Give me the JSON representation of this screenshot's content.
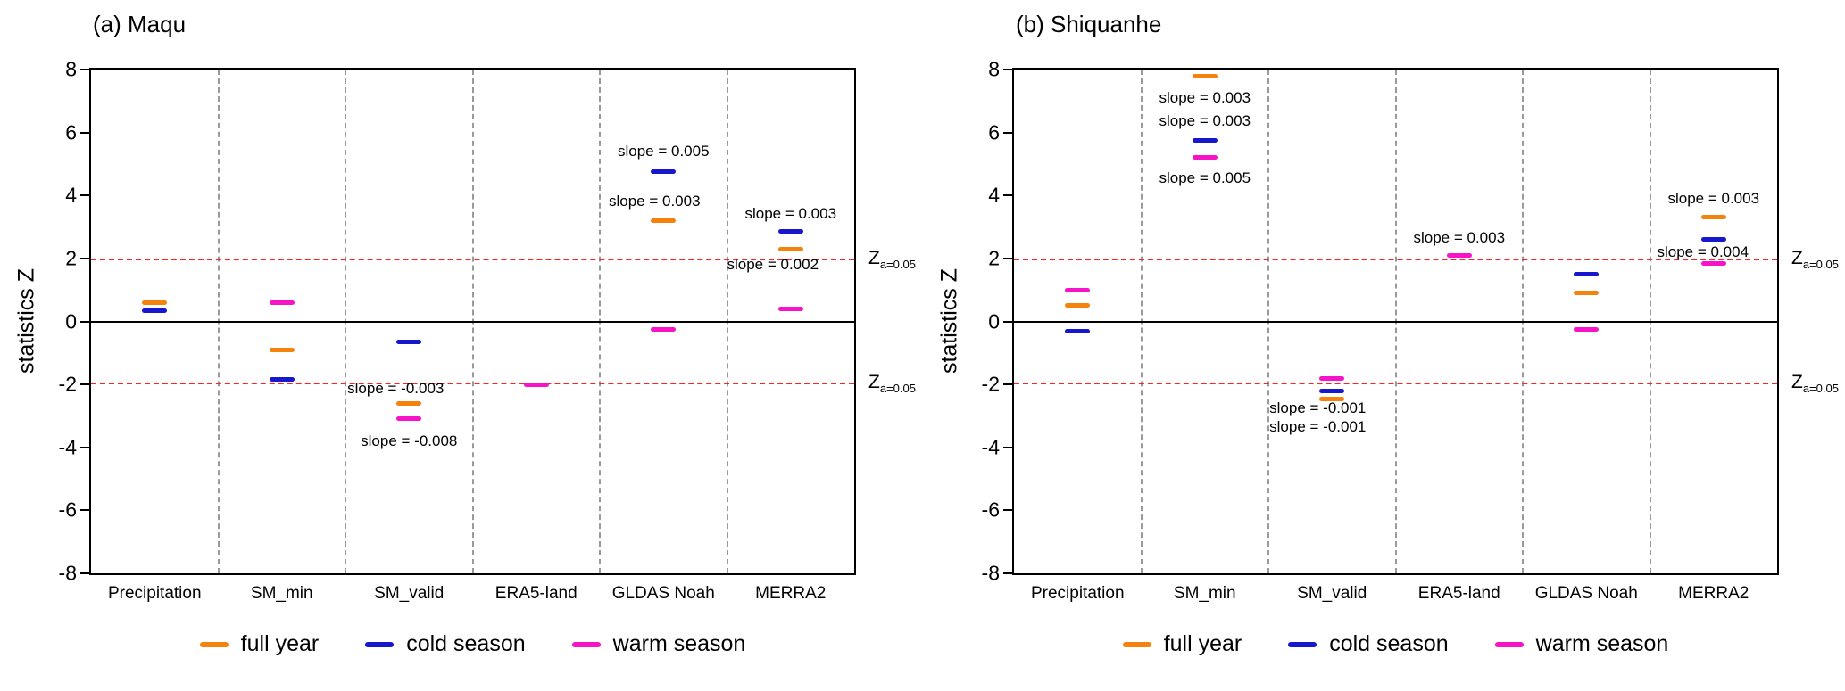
{
  "figure": {
    "background": "#ffffff",
    "axis_color": "#000000",
    "grid_color": "#9a9a9a",
    "significance_level": 1.96,
    "ref_line_color": "#ff2222",
    "ref_label_base": "Z",
    "ref_label_sub": "a=0.05"
  },
  "legend": {
    "items": [
      {
        "label": "full year",
        "color": "#f5820d"
      },
      {
        "label": "cold season",
        "color": "#1717cd"
      },
      {
        "label": "warm season",
        "color": "#f714c8"
      }
    ]
  },
  "chart_data": [
    {
      "type": "scatter",
      "title": "(a) Maqu",
      "ylabel": "statistics Z",
      "ylim": [
        -8,
        8
      ],
      "yticks": [
        -8,
        -6,
        -4,
        -2,
        0,
        2,
        4,
        6,
        8
      ],
      "grid": "vertical-dashed",
      "legend_position": "bottom",
      "categories": [
        "Precipitation",
        "SM_min",
        "SM_valid",
        "ERA5-land",
        "GLDAS Noah",
        "MERRA2"
      ],
      "series": [
        {
          "name": "full year",
          "color": "#f5820d",
          "marker": "dash",
          "values": [
            0.6,
            -0.9,
            -2.6,
            null,
            3.2,
            2.3
          ]
        },
        {
          "name": "cold season",
          "color": "#1717cd",
          "marker": "dash",
          "values": [
            0.35,
            -1.85,
            -0.65,
            null,
            4.75,
            2.85
          ]
        },
        {
          "name": "warm season",
          "color": "#f714c8",
          "marker": "dash",
          "values": [
            null,
            0.6,
            -3.1,
            -2.0,
            -0.25,
            0.4
          ]
        }
      ],
      "annotations": [
        {
          "category": "SM_valid",
          "cat": 2,
          "y": -2.15,
          "dx": -15,
          "text": "slope = -0.003"
        },
        {
          "category": "SM_valid",
          "cat": 2,
          "y": -3.8,
          "dx": 0,
          "text": "slope = -0.008"
        },
        {
          "category": "GLDAS Noah",
          "cat": 4,
          "y": 5.4,
          "dx": 0,
          "text": "slope = 0.005"
        },
        {
          "category": "GLDAS Noah",
          "cat": 4,
          "y": 3.8,
          "dx": -10,
          "text": "slope = 0.003"
        },
        {
          "category": "MERRA2",
          "cat": 5,
          "y": 3.4,
          "dx": 0,
          "text": "slope = 0.003"
        },
        {
          "category": "MERRA2",
          "cat": 5,
          "y": 1.8,
          "dx": -20,
          "text": "slope = 0.002"
        }
      ]
    },
    {
      "type": "scatter",
      "title": "(b) Shiquanhe",
      "ylabel": "statistics Z",
      "ylim": [
        -8,
        8
      ],
      "yticks": [
        -8,
        -6,
        -4,
        -2,
        0,
        2,
        4,
        6,
        8
      ],
      "grid": "vertical-dashed",
      "legend_position": "bottom",
      "categories": [
        "Precipitation",
        "SM_min",
        "SM_valid",
        "ERA5-land",
        "GLDAS Noah",
        "MERRA2"
      ],
      "series": [
        {
          "name": "full year",
          "color": "#f5820d",
          "marker": "dash",
          "values": [
            0.5,
            7.8,
            -2.45,
            null,
            0.9,
            3.3
          ]
        },
        {
          "name": "cold season",
          "color": "#1717cd",
          "marker": "dash",
          "values": [
            -0.3,
            5.75,
            -2.2,
            null,
            1.5,
            2.6
          ]
        },
        {
          "name": "warm season",
          "color": "#f714c8",
          "marker": "dash",
          "values": [
            1.0,
            5.2,
            -1.8,
            2.1,
            -0.25,
            1.85
          ]
        }
      ],
      "annotations": [
        {
          "category": "SM_min",
          "cat": 1,
          "y": 7.1,
          "dx": 0,
          "text": "slope = 0.003"
        },
        {
          "category": "SM_min",
          "cat": 1,
          "y": 6.35,
          "dx": 0,
          "text": "slope = 0.003"
        },
        {
          "category": "SM_min",
          "cat": 1,
          "y": 4.55,
          "dx": 0,
          "text": "slope = 0.005"
        },
        {
          "category": "SM_valid",
          "cat": 2,
          "y": -2.75,
          "dx": -16,
          "text": "slope = -0.001"
        },
        {
          "category": "SM_valid",
          "cat": 2,
          "y": -3.35,
          "dx": -16,
          "text": "slope = -0.001"
        },
        {
          "category": "ERA5-land",
          "cat": 3,
          "y": 2.65,
          "dx": 0,
          "text": "slope = 0.003"
        },
        {
          "category": "MERRA2",
          "cat": 5,
          "y": 3.9,
          "dx": 0,
          "text": "slope = 0.003"
        },
        {
          "category": "MERRA2",
          "cat": 5,
          "y": 2.2,
          "dx": -12,
          "text": "slope = 0.004"
        }
      ]
    }
  ]
}
